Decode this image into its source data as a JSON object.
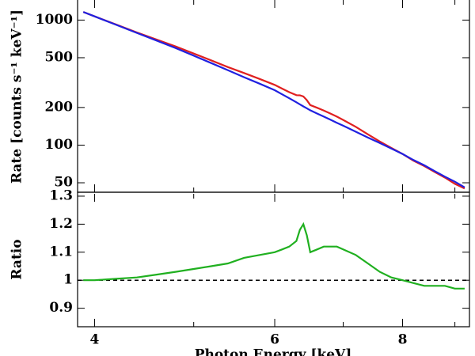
{
  "chart_data": [
    {
      "type": "line",
      "ylabel": "Rate [counts s⁻¹ keV⁻¹]",
      "yscale": "log",
      "xlim": [
        3.85,
        9.3
      ],
      "xscale": "log",
      "ylim": [
        42,
        1490
      ],
      "yticks": [
        50,
        100,
        200,
        500,
        1000
      ],
      "x": [
        3.9,
        4.0,
        4.2,
        4.4,
        4.6,
        4.8,
        5.0,
        5.2,
        5.4,
        5.6,
        5.8,
        6.0,
        6.1,
        6.2,
        6.3,
        6.35,
        6.4,
        6.45,
        6.5,
        6.6,
        6.7,
        6.8,
        6.9,
        7.0,
        7.2,
        7.4,
        7.6,
        7.8,
        8.0,
        8.2,
        8.4,
        8.6,
        8.8,
        9.0,
        9.2
      ],
      "series": [
        {
          "color": "#e02020",
          "values": [
            1162,
            1071,
            921,
            797,
            699,
            616,
            540,
            476,
            421,
            377,
            338,
            303,
            283,
            265,
            251,
            250,
            245,
            229,
            209,
            199,
            189,
            179,
            169,
            159,
            140,
            122,
            107,
            95,
            85,
            75,
            68,
            61,
            55,
            49,
            45
          ]
        },
        {
          "color": "#2020e0",
          "values": [
            1162,
            1071,
            916,
            789,
            685,
            598,
            519,
            453,
            397,
            349,
            310,
            275,
            255,
            237,
            220,
            212,
            204,
            197,
            190,
            179,
            169,
            160,
            151,
            143,
            128,
            115,
            104,
            94,
            85,
            76,
            69,
            62,
            56,
            51,
            46
          ]
        }
      ]
    },
    {
      "type": "line",
      "ylabel": "Ratio",
      "xlabel": "Photon Energy [keV]",
      "xlim": [
        3.85,
        9.3
      ],
      "xscale": "log",
      "xticks": [
        4,
        6,
        8
      ],
      "xminor": [
        5,
        7,
        9
      ],
      "ylim": [
        0.834,
        1.314
      ],
      "yticks": [
        0.9,
        1,
        1.1,
        1.2,
        1.3
      ],
      "ref_line": 1,
      "x": [
        3.9,
        4.0,
        4.2,
        4.4,
        4.6,
        4.8,
        5.0,
        5.2,
        5.4,
        5.6,
        5.8,
        6.0,
        6.1,
        6.2,
        6.3,
        6.35,
        6.4,
        6.45,
        6.5,
        6.6,
        6.7,
        6.8,
        6.9,
        7.0,
        7.2,
        7.4,
        7.6,
        7.8,
        8.0,
        8.2,
        8.4,
        8.6,
        8.8,
        9.0,
        9.2
      ],
      "series": [
        {
          "color": "#20b020",
          "values": [
            1.0,
            1.0,
            1.005,
            1.01,
            1.02,
            1.03,
            1.04,
            1.05,
            1.06,
            1.08,
            1.09,
            1.1,
            1.11,
            1.12,
            1.14,
            1.18,
            1.2,
            1.16,
            1.1,
            1.11,
            1.12,
            1.12,
            1.12,
            1.11,
            1.09,
            1.06,
            1.03,
            1.01,
            1.0,
            0.99,
            0.98,
            0.98,
            0.98,
            0.97,
            0.97
          ]
        }
      ]
    }
  ]
}
